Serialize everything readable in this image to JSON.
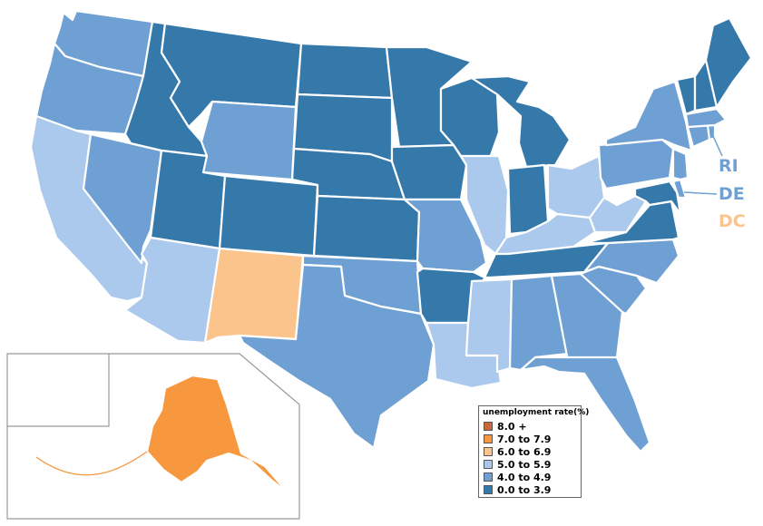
{
  "colors": {
    "8_plus": "#c8673a",
    "7_to_7_9": "#f7983f",
    "6_to_6_9": "#fcc48d",
    "5_to_5_9": "#aac9ec",
    "4_to_4_9": "#6fa0d3",
    "0_to_3_9": "#3579ab"
  },
  "legend": {
    "title": "unemployment rate(%)",
    "items": [
      {
        "label": "8.0 +",
        "color_key": "8_plus"
      },
      {
        "label": "7.0 to 7.9",
        "color_key": "7_to_7_9"
      },
      {
        "label": "6.0 to 6.9",
        "color_key": "6_to_6_9"
      },
      {
        "label": "5.0 to 5.9",
        "color_key": "5_to_5_9"
      },
      {
        "label": "4.0 to 4.9",
        "color_key": "4_to_4_9"
      },
      {
        "label": "0.0 to 3.9",
        "color_key": "0_to_3_9"
      }
    ]
  },
  "callouts": [
    {
      "label": "RI",
      "color_key": "4_to_4_9"
    },
    {
      "label": "DE",
      "color_key": "4_to_4_9"
    },
    {
      "label": "DC",
      "color_key": "6_to_6_9"
    }
  ],
  "states": [
    {
      "id": "WA",
      "color_key": "4_to_4_9"
    },
    {
      "id": "OR",
      "color_key": "4_to_4_9"
    },
    {
      "id": "CA",
      "color_key": "5_to_5_9"
    },
    {
      "id": "NV",
      "color_key": "4_to_4_9"
    },
    {
      "id": "ID",
      "color_key": "0_to_3_9"
    },
    {
      "id": "MT",
      "color_key": "0_to_3_9"
    },
    {
      "id": "WY",
      "color_key": "4_to_4_9"
    },
    {
      "id": "UT",
      "color_key": "0_to_3_9"
    },
    {
      "id": "AZ",
      "color_key": "5_to_5_9"
    },
    {
      "id": "CO",
      "color_key": "0_to_3_9"
    },
    {
      "id": "NM",
      "color_key": "6_to_6_9"
    },
    {
      "id": "ND",
      "color_key": "0_to_3_9"
    },
    {
      "id": "SD",
      "color_key": "0_to_3_9"
    },
    {
      "id": "NE",
      "color_key": "0_to_3_9"
    },
    {
      "id": "KS",
      "color_key": "0_to_3_9"
    },
    {
      "id": "OK",
      "color_key": "4_to_4_9"
    },
    {
      "id": "TX",
      "color_key": "4_to_4_9"
    },
    {
      "id": "MN",
      "color_key": "0_to_3_9"
    },
    {
      "id": "IA",
      "color_key": "0_to_3_9"
    },
    {
      "id": "MO",
      "color_key": "4_to_4_9"
    },
    {
      "id": "AR",
      "color_key": "0_to_3_9"
    },
    {
      "id": "LA",
      "color_key": "5_to_5_9"
    },
    {
      "id": "WI",
      "color_key": "0_to_3_9"
    },
    {
      "id": "IL",
      "color_key": "5_to_5_9"
    },
    {
      "id": "MI",
      "color_key": "0_to_3_9"
    },
    {
      "id": "IN",
      "color_key": "0_to_3_9"
    },
    {
      "id": "OH",
      "color_key": "5_to_5_9"
    },
    {
      "id": "KY",
      "color_key": "5_to_5_9"
    },
    {
      "id": "TN",
      "color_key": "0_to_3_9"
    },
    {
      "id": "MS",
      "color_key": "5_to_5_9"
    },
    {
      "id": "AL",
      "color_key": "4_to_4_9"
    },
    {
      "id": "GA",
      "color_key": "4_to_4_9"
    },
    {
      "id": "FL",
      "color_key": "4_to_4_9"
    },
    {
      "id": "SC",
      "color_key": "4_to_4_9"
    },
    {
      "id": "NC",
      "color_key": "4_to_4_9"
    },
    {
      "id": "VA",
      "color_key": "0_to_3_9"
    },
    {
      "id": "WV",
      "color_key": "5_to_5_9"
    },
    {
      "id": "PA",
      "color_key": "4_to_4_9"
    },
    {
      "id": "NY",
      "color_key": "4_to_4_9"
    },
    {
      "id": "MD",
      "color_key": "0_to_3_9"
    },
    {
      "id": "DE",
      "color_key": "4_to_4_9"
    },
    {
      "id": "NJ",
      "color_key": "4_to_4_9"
    },
    {
      "id": "CT",
      "color_key": "4_to_4_9"
    },
    {
      "id": "RI",
      "color_key": "4_to_4_9"
    },
    {
      "id": "MA",
      "color_key": "4_to_4_9"
    },
    {
      "id": "VT",
      "color_key": "0_to_3_9"
    },
    {
      "id": "NH",
      "color_key": "0_to_3_9"
    },
    {
      "id": "ME",
      "color_key": "0_to_3_9"
    },
    {
      "id": "AK",
      "color_key": "7_to_7_9"
    },
    {
      "id": "HI",
      "color_key": "0_to_3_9"
    }
  ]
}
